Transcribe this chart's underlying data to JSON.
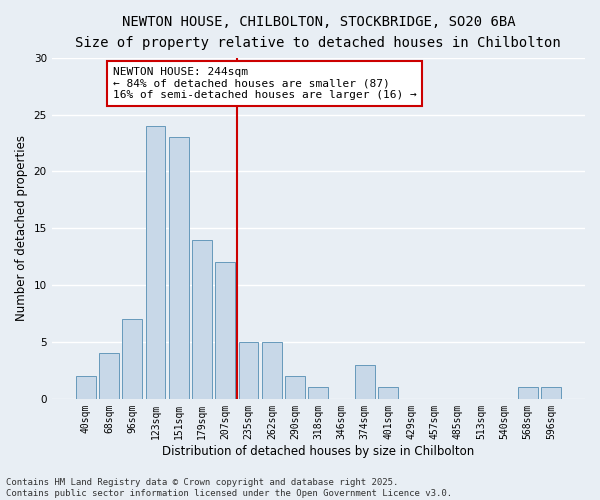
{
  "title_line1": "NEWTON HOUSE, CHILBOLTON, STOCKBRIDGE, SO20 6BA",
  "title_line2": "Size of property relative to detached houses in Chilbolton",
  "xlabel": "Distribution of detached houses by size in Chilbolton",
  "ylabel": "Number of detached properties",
  "bar_labels": [
    "40sqm",
    "68sqm",
    "96sqm",
    "123sqm",
    "151sqm",
    "179sqm",
    "207sqm",
    "235sqm",
    "262sqm",
    "290sqm",
    "318sqm",
    "346sqm",
    "374sqm",
    "401sqm",
    "429sqm",
    "457sqm",
    "485sqm",
    "513sqm",
    "540sqm",
    "568sqm",
    "596sqm"
  ],
  "bar_values": [
    2,
    4,
    7,
    24,
    23,
    14,
    12,
    5,
    5,
    2,
    1,
    0,
    3,
    1,
    0,
    0,
    0,
    0,
    0,
    1,
    1
  ],
  "bar_color": "#c8d8e8",
  "bar_edge_color": "#6699bb",
  "vline_bin_index": 7,
  "vline_color": "#cc0000",
  "annotation_text": "NEWTON HOUSE: 244sqm\n← 84% of detached houses are smaller (87)\n16% of semi-detached houses are larger (16) →",
  "annotation_edge_color": "#cc0000",
  "annotation_facecolor": "#ffffff",
  "ylim": [
    0,
    30
  ],
  "yticks": [
    0,
    5,
    10,
    15,
    20,
    25,
    30
  ],
  "background_color": "#e8eef4",
  "grid_color": "#ffffff",
  "footer_text": "Contains HM Land Registry data © Crown copyright and database right 2025.\nContains public sector information licensed under the Open Government Licence v3.0.",
  "title_fontsize": 10,
  "subtitle_fontsize": 9,
  "tick_fontsize": 7,
  "ylabel_fontsize": 8.5,
  "xlabel_fontsize": 8.5,
  "annotation_fontsize": 8,
  "footer_fontsize": 6.5
}
